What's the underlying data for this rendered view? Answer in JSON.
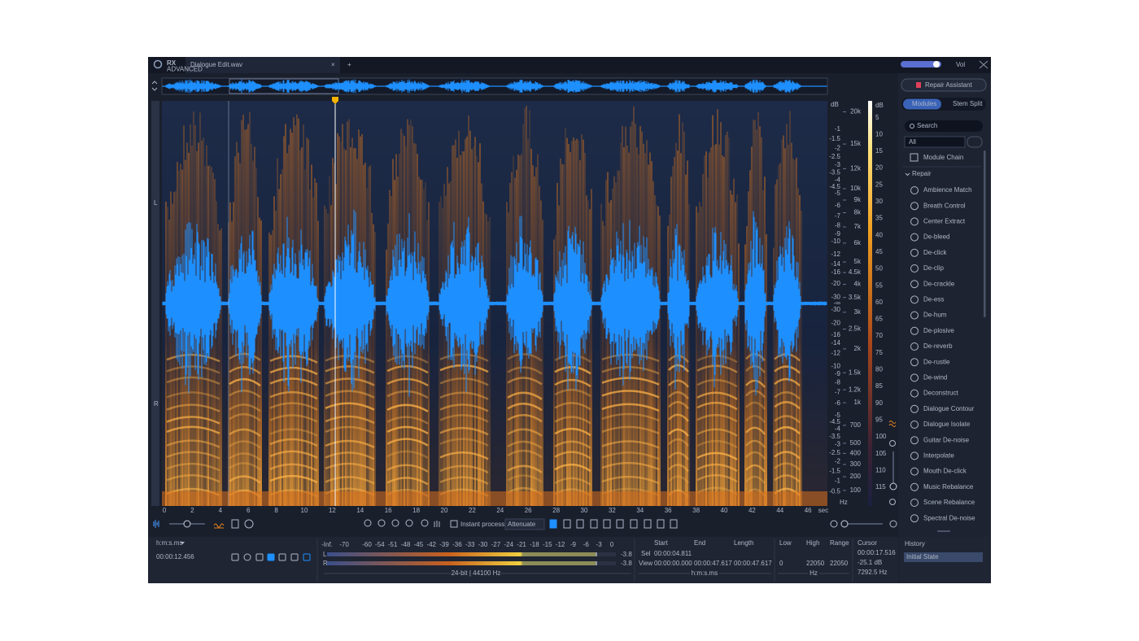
{
  "tab": {
    "logo": "RX",
    "logo_sub": "ADVANCED",
    "file": "Dialogue Edit.wav",
    "close": "×",
    "new": "+"
  },
  "volume": {
    "label": "Vol"
  },
  "channels": [
    "L",
    "R"
  ],
  "amplitude_scale": {
    "unit": "dB",
    "labels": [
      "-1",
      "-1.5",
      "-2",
      "-2.5",
      "-3",
      "-3.5",
      "-4",
      "-4.5",
      "-5",
      "-6",
      "-7",
      "-8",
      "-9",
      "-10",
      "-12",
      "-14",
      "-16",
      "-20",
      "-30",
      "-∞",
      "-30",
      "-20",
      "-16",
      "-14",
      "-12",
      "-10",
      "-9",
      "-8",
      "-7",
      "-6",
      "-5",
      "-4.5",
      "-4",
      "-3.5",
      "-3",
      "-2.5",
      "-2",
      "-1.5",
      "-1",
      "-0.5"
    ]
  },
  "frequency_scale": {
    "unit": "Hz",
    "labels": [
      "20k",
      "15k",
      "12k",
      "10k",
      "9k",
      "8k",
      "7k",
      "6k",
      "5k",
      "4.5k",
      "4k",
      "3.5k",
      "3k",
      "2.5k",
      "2k",
      "1.5k",
      "1.2k",
      "1k",
      "700",
      "500",
      "400",
      "300",
      "200",
      "100"
    ]
  },
  "color_scale": {
    "unit": "dB",
    "labels": [
      5,
      10,
      15,
      20,
      25,
      30,
      35,
      40,
      45,
      50,
      55,
      60,
      65,
      70,
      75,
      80,
      85,
      90,
      95,
      100,
      105,
      110,
      115
    ]
  },
  "time_axis": {
    "unit": "sec",
    "labels": [
      0,
      2,
      4,
      6,
      8,
      10,
      12,
      14,
      16,
      18,
      20,
      22,
      24,
      26,
      28,
      30,
      32,
      34,
      36,
      38,
      40,
      42,
      44,
      46
    ]
  },
  "toolbar": {
    "instant_process": "Instant process",
    "mode": "Attenuate"
  },
  "transport": {
    "format": "h:m:s.ms",
    "time": "00:00:12.456"
  },
  "meter": {
    "scale": [
      "-Inf.",
      "-70",
      "-60",
      "-54",
      "-51",
      "-48",
      "-45",
      "-42",
      "-39",
      "-36",
      "-33",
      "-30",
      "-27",
      "-24",
      "-21",
      "-18",
      "-15",
      "-12",
      "-9",
      "-6",
      "-3",
      "0"
    ],
    "channels": [
      "L",
      "R"
    ],
    "peaks": [
      "-3.8",
      "-3.8"
    ],
    "format": "24-bit | 44100 Hz"
  },
  "selection": {
    "headers": [
      "Start",
      "End",
      "Length"
    ],
    "sel": {
      "label": "Sel",
      "start": "00:00:04.811"
    },
    "view": {
      "label": "View",
      "start": "00:00:00.000",
      "end": "00:00:47.617",
      "length": "00:00:47.617"
    },
    "unit": "h:m:s.ms"
  },
  "frequency_range": {
    "headers": [
      "Low",
      "High",
      "Range"
    ],
    "values": [
      "0",
      "22050",
      "22050"
    ],
    "unit": "Hz"
  },
  "cursor": {
    "header": "Cursor",
    "time": "00:00:17.516",
    "level": "-25.1 dB",
    "frequency": "7292.5 Hz"
  },
  "sidebar": {
    "repair_assistant": "Repair Assistant",
    "tabs": [
      "Modules",
      "Stem Split"
    ],
    "search": "Search",
    "filter": "All",
    "module_chain": "Module Chain",
    "group": "Repair",
    "modules": [
      "Ambience Match",
      "Breath Control",
      "Center Extract",
      "De-bleed",
      "De-click",
      "De-clip",
      "De-crackle",
      "De-ess",
      "De-hum",
      "De-plosive",
      "De-reverb",
      "De-rustle",
      "De-wind",
      "Deconstruct",
      "Dialogue Contour",
      "Dialogue Isolate",
      "Guitar De-noise",
      "Interpolate",
      "Mouth De-click",
      "Music Rebalance",
      "Scene Rebalance",
      "Spectral De-noise"
    ]
  },
  "history": {
    "title": "History",
    "states": [
      "Initial State"
    ]
  }
}
